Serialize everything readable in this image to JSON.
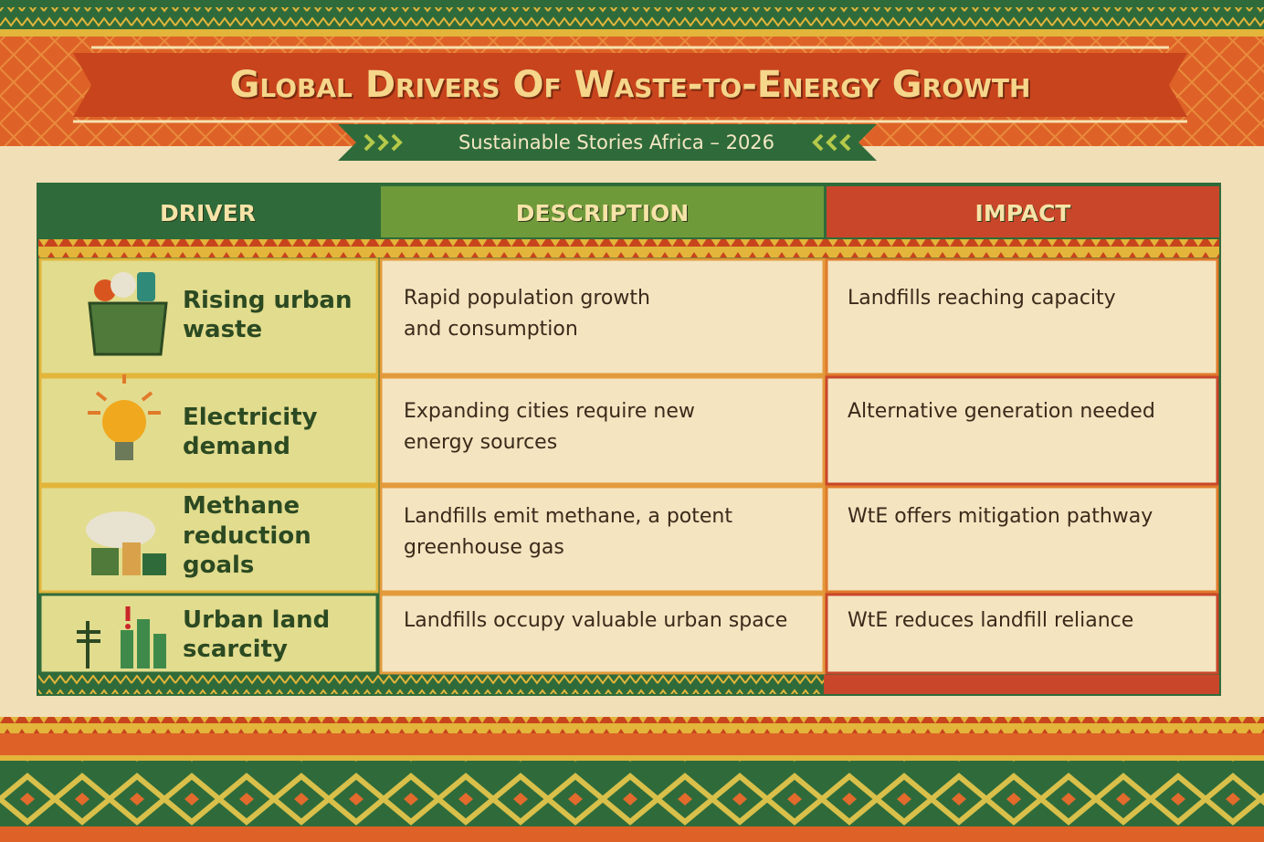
{
  "header": {
    "title": "Global Drivers Of Waste-to-Energy Growth",
    "subtitle": "Sustainable Stories Africa – 2026"
  },
  "table": {
    "columns": [
      "DRIVER",
      "DESCRIPTION",
      "IMPACT"
    ],
    "rows": [
      [
        "Rising urban waste",
        "Rapid population growth and consumption",
        "Landfills reaching capacity"
      ],
      [
        "Electricity demand",
        "Expanding cities require new energy sources",
        "Alternative generation needed"
      ],
      [
        "Methane reduction goals",
        "Landfills emit methane, a potent greenhouse gas",
        "WtE offers mitigation pathway"
      ],
      [
        "Urban land scarcity",
        "Landfills occupy valuable urban space",
        "WtE reduces landfill reliance"
      ]
    ]
  }
}
